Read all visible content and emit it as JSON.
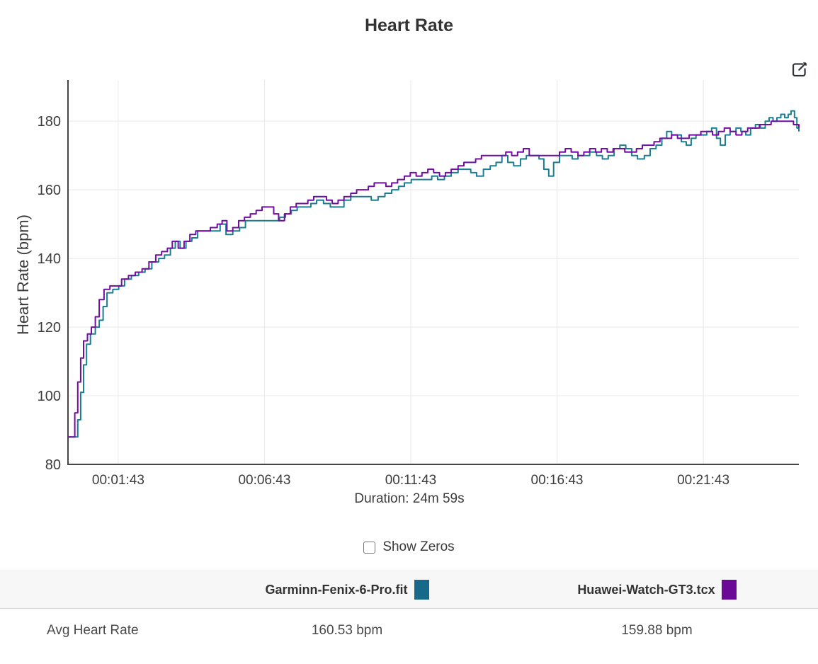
{
  "header": {
    "title": "Heart Rate"
  },
  "toolbar": {
    "edit_icon": "edit-icon"
  },
  "controls": {
    "show_zeros_label": "Show Zeros",
    "show_zeros_checked": false
  },
  "summary_table": {
    "row_label": "Avg Heart Rate"
  },
  "chart_data": {
    "type": "line",
    "title": "Heart Rate",
    "x_axis_title": "Duration: 24m 59s",
    "y_axis_title": "Heart Rate (bpm)",
    "line_style": "step-after",
    "grid": true,
    "legend_position": "bottom-table",
    "x_domain_seconds": [
      0,
      1499
    ],
    "y_domain": [
      80,
      192
    ],
    "y_ticks": [
      80,
      100,
      120,
      140,
      160,
      180
    ],
    "x_ticks": [
      {
        "t": 103,
        "label": "00:01:43"
      },
      {
        "t": 403,
        "label": "00:06:43"
      },
      {
        "t": 703,
        "label": "00:11:43"
      },
      {
        "t": 1003,
        "label": "00:16:43"
      },
      {
        "t": 1303,
        "label": "00:21:43"
      }
    ],
    "axis_color": "#444444",
    "grid_color": "#e8e8e8",
    "series": [
      {
        "name": "Garminn-Fenix-6-Pro.fit",
        "color": "#17698a",
        "line_color": "#1a7d93",
        "avg_heart_rate": "160.53 bpm",
        "points": [
          [
            0,
            88
          ],
          [
            14,
            88
          ],
          [
            20,
            93
          ],
          [
            26,
            101
          ],
          [
            32,
            109
          ],
          [
            38,
            115
          ],
          [
            46,
            118
          ],
          [
            56,
            120
          ],
          [
            64,
            122
          ],
          [
            72,
            126
          ],
          [
            80,
            130
          ],
          [
            92,
            131
          ],
          [
            104,
            132
          ],
          [
            116,
            134
          ],
          [
            130,
            135
          ],
          [
            145,
            136
          ],
          [
            158,
            137
          ],
          [
            172,
            139
          ],
          [
            186,
            140
          ],
          [
            198,
            141
          ],
          [
            210,
            143
          ],
          [
            220,
            145
          ],
          [
            230,
            143
          ],
          [
            242,
            145
          ],
          [
            254,
            146
          ],
          [
            266,
            148
          ],
          [
            282,
            148
          ],
          [
            298,
            148
          ],
          [
            312,
            150
          ],
          [
            324,
            147
          ],
          [
            338,
            148
          ],
          [
            352,
            149
          ],
          [
            364,
            151
          ],
          [
            378,
            151
          ],
          [
            392,
            151
          ],
          [
            406,
            151
          ],
          [
            420,
            151
          ],
          [
            434,
            152
          ],
          [
            446,
            153
          ],
          [
            458,
            154
          ],
          [
            470,
            155
          ],
          [
            484,
            155
          ],
          [
            498,
            156
          ],
          [
            510,
            157
          ],
          [
            524,
            156
          ],
          [
            538,
            155
          ],
          [
            552,
            155
          ],
          [
            566,
            157
          ],
          [
            580,
            158
          ],
          [
            594,
            158
          ],
          [
            608,
            158
          ],
          [
            622,
            157
          ],
          [
            636,
            158
          ],
          [
            650,
            159
          ],
          [
            664,
            160
          ],
          [
            678,
            161
          ],
          [
            690,
            162
          ],
          [
            704,
            163
          ],
          [
            718,
            163
          ],
          [
            732,
            163
          ],
          [
            746,
            164
          ],
          [
            758,
            163
          ],
          [
            772,
            164
          ],
          [
            786,
            165
          ],
          [
            800,
            166
          ],
          [
            812,
            166
          ],
          [
            826,
            165
          ],
          [
            838,
            164
          ],
          [
            852,
            166
          ],
          [
            866,
            167
          ],
          [
            878,
            168
          ],
          [
            890,
            170
          ],
          [
            902,
            168
          ],
          [
            914,
            167
          ],
          [
            928,
            169
          ],
          [
            940,
            170
          ],
          [
            954,
            170
          ],
          [
            966,
            169
          ],
          [
            976,
            166
          ],
          [
            986,
            164
          ],
          [
            996,
            168
          ],
          [
            1008,
            170
          ],
          [
            1020,
            170
          ],
          [
            1034,
            169
          ],
          [
            1046,
            170
          ],
          [
            1058,
            170
          ],
          [
            1070,
            171
          ],
          [
            1084,
            170
          ],
          [
            1096,
            169
          ],
          [
            1108,
            170
          ],
          [
            1120,
            172
          ],
          [
            1132,
            173
          ],
          [
            1144,
            172
          ],
          [
            1156,
            170
          ],
          [
            1168,
            169
          ],
          [
            1182,
            170
          ],
          [
            1194,
            172
          ],
          [
            1206,
            173
          ],
          [
            1218,
            175
          ],
          [
            1228,
            177
          ],
          [
            1238,
            176
          ],
          [
            1248,
            176
          ],
          [
            1258,
            174
          ],
          [
            1268,
            173
          ],
          [
            1278,
            175
          ],
          [
            1288,
            176
          ],
          [
            1300,
            176
          ],
          [
            1310,
            177
          ],
          [
            1320,
            178
          ],
          [
            1330,
            175
          ],
          [
            1338,
            173
          ],
          [
            1348,
            176
          ],
          [
            1358,
            177
          ],
          [
            1370,
            178
          ],
          [
            1380,
            177
          ],
          [
            1390,
            176
          ],
          [
            1400,
            178
          ],
          [
            1410,
            179
          ],
          [
            1420,
            178
          ],
          [
            1430,
            180
          ],
          [
            1438,
            181
          ],
          [
            1446,
            180
          ],
          [
            1454,
            181
          ],
          [
            1462,
            182
          ],
          [
            1470,
            181
          ],
          [
            1477,
            182
          ],
          [
            1483,
            183
          ],
          [
            1490,
            181
          ],
          [
            1495,
            178
          ],
          [
            1499,
            177
          ]
        ]
      },
      {
        "name": "Huawei-Watch-GT3.tcx",
        "color": "#6a0a96",
        "line_color": "#720da0",
        "avg_heart_rate": "159.88 bpm",
        "points": [
          [
            0,
            88
          ],
          [
            8,
            88
          ],
          [
            14,
            95
          ],
          [
            20,
            104
          ],
          [
            26,
            111
          ],
          [
            32,
            116
          ],
          [
            40,
            118
          ],
          [
            48,
            120
          ],
          [
            56,
            123
          ],
          [
            64,
            128
          ],
          [
            74,
            131
          ],
          [
            86,
            132
          ],
          [
            98,
            132
          ],
          [
            110,
            134
          ],
          [
            124,
            135
          ],
          [
            138,
            136
          ],
          [
            152,
            137
          ],
          [
            166,
            139
          ],
          [
            180,
            141
          ],
          [
            192,
            142
          ],
          [
            204,
            143
          ],
          [
            214,
            145
          ],
          [
            226,
            143
          ],
          [
            238,
            145
          ],
          [
            250,
            147
          ],
          [
            262,
            148
          ],
          [
            278,
            148
          ],
          [
            292,
            149
          ],
          [
            306,
            150
          ],
          [
            316,
            151
          ],
          [
            326,
            148
          ],
          [
            338,
            149
          ],
          [
            350,
            151
          ],
          [
            362,
            152
          ],
          [
            374,
            153
          ],
          [
            386,
            154
          ],
          [
            398,
            155
          ],
          [
            410,
            155
          ],
          [
            422,
            153
          ],
          [
            432,
            151
          ],
          [
            444,
            153
          ],
          [
            456,
            155
          ],
          [
            468,
            156
          ],
          [
            480,
            156
          ],
          [
            492,
            157
          ],
          [
            504,
            158
          ],
          [
            518,
            158
          ],
          [
            530,
            157
          ],
          [
            542,
            156
          ],
          [
            554,
            157
          ],
          [
            566,
            158
          ],
          [
            580,
            159
          ],
          [
            592,
            160
          ],
          [
            604,
            160
          ],
          [
            616,
            161
          ],
          [
            628,
            162
          ],
          [
            640,
            162
          ],
          [
            652,
            161
          ],
          [
            664,
            162
          ],
          [
            676,
            163
          ],
          [
            690,
            164
          ],
          [
            702,
            165
          ],
          [
            714,
            164
          ],
          [
            726,
            165
          ],
          [
            738,
            166
          ],
          [
            750,
            165
          ],
          [
            762,
            164
          ],
          [
            774,
            165
          ],
          [
            786,
            166
          ],
          [
            800,
            167
          ],
          [
            812,
            168
          ],
          [
            824,
            168
          ],
          [
            836,
            169
          ],
          [
            848,
            170
          ],
          [
            862,
            170
          ],
          [
            874,
            170
          ],
          [
            886,
            170
          ],
          [
            898,
            171
          ],
          [
            910,
            170
          ],
          [
            922,
            171
          ],
          [
            934,
            172
          ],
          [
            946,
            170
          ],
          [
            958,
            170
          ],
          [
            972,
            170
          ],
          [
            984,
            170
          ],
          [
            996,
            170
          ],
          [
            1008,
            171
          ],
          [
            1020,
            172
          ],
          [
            1032,
            171
          ],
          [
            1046,
            170
          ],
          [
            1058,
            171
          ],
          [
            1070,
            172
          ],
          [
            1082,
            171
          ],
          [
            1094,
            172
          ],
          [
            1106,
            171
          ],
          [
            1118,
            172
          ],
          [
            1130,
            172
          ],
          [
            1142,
            171
          ],
          [
            1154,
            171
          ],
          [
            1166,
            172
          ],
          [
            1178,
            173
          ],
          [
            1190,
            173
          ],
          [
            1202,
            174
          ],
          [
            1214,
            175
          ],
          [
            1226,
            175
          ],
          [
            1238,
            176
          ],
          [
            1250,
            175
          ],
          [
            1262,
            175
          ],
          [
            1274,
            176
          ],
          [
            1286,
            176
          ],
          [
            1298,
            177
          ],
          [
            1310,
            177
          ],
          [
            1322,
            176
          ],
          [
            1334,
            177
          ],
          [
            1346,
            178
          ],
          [
            1358,
            177
          ],
          [
            1370,
            176
          ],
          [
            1382,
            177
          ],
          [
            1394,
            178
          ],
          [
            1406,
            178
          ],
          [
            1418,
            179
          ],
          [
            1430,
            179
          ],
          [
            1442,
            180
          ],
          [
            1454,
            180
          ],
          [
            1466,
            180
          ],
          [
            1478,
            180
          ],
          [
            1488,
            179
          ],
          [
            1499,
            178
          ]
        ]
      }
    ]
  }
}
